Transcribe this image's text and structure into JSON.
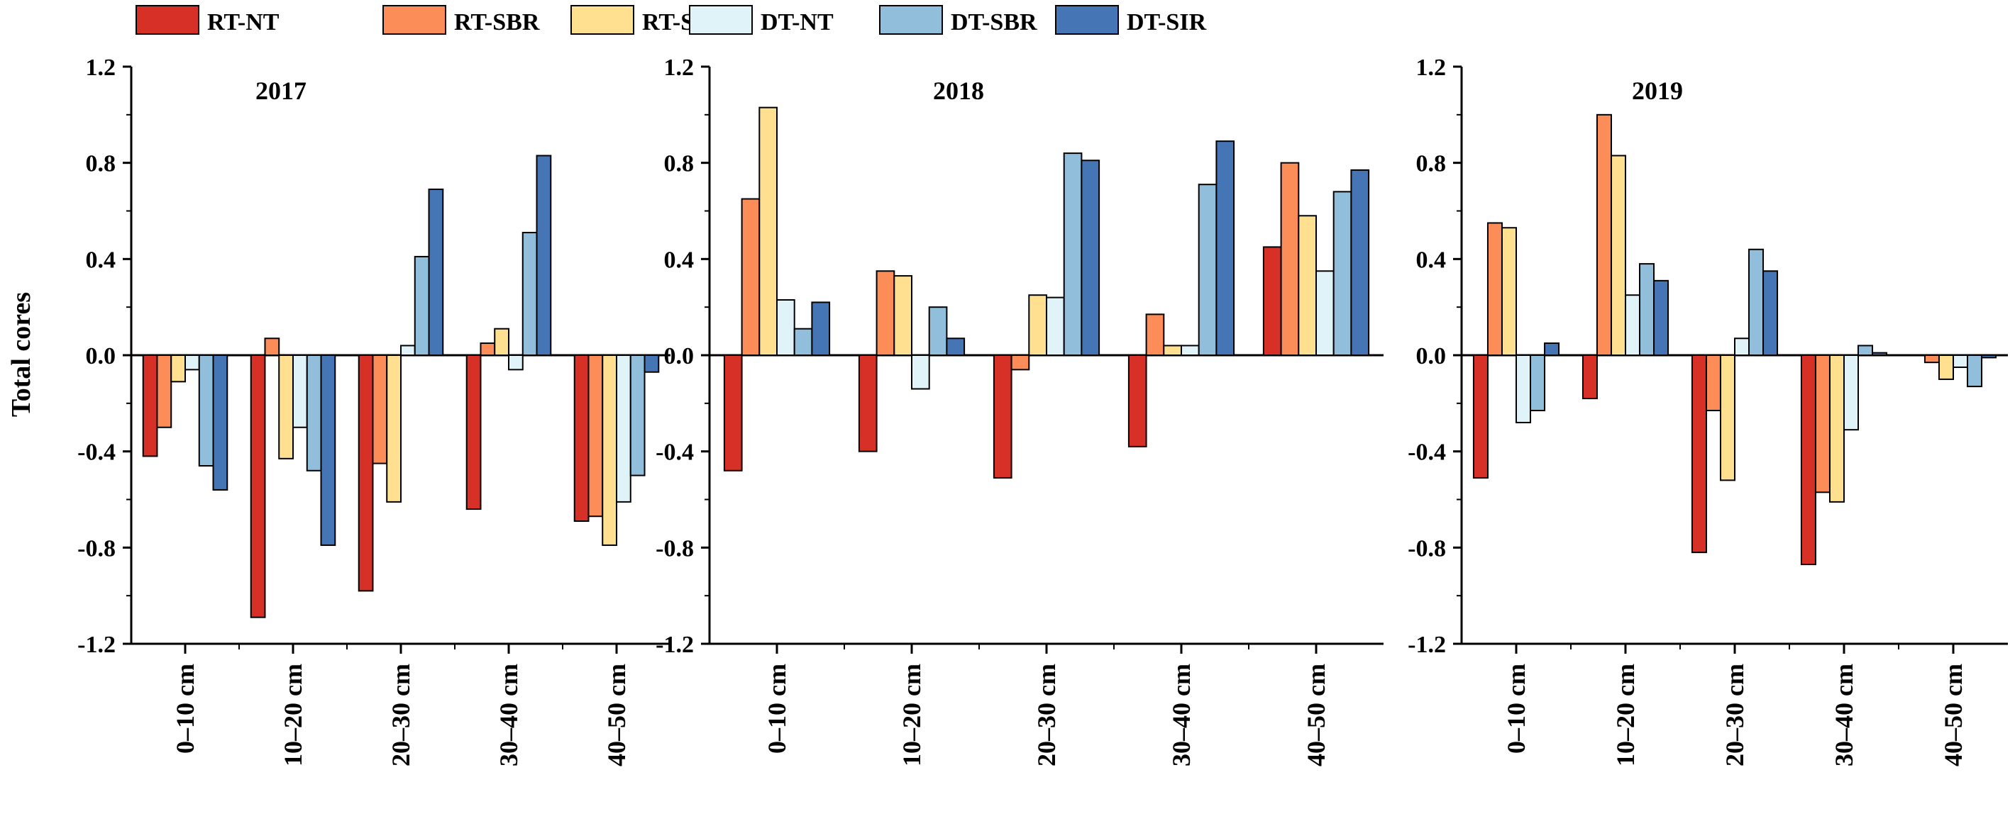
{
  "chart_data": {
    "type": "bar",
    "ylabel": "Total cores",
    "ylim": [
      -1.2,
      1.2
    ],
    "yticks": [
      "1.2",
      "0.8",
      "0.4",
      "0.0",
      "-0.4",
      "-0.8",
      "-1.2"
    ],
    "categories": [
      "0–10 cm",
      "10–20 cm",
      "20–30 cm",
      "30–40 cm",
      "40–50 cm"
    ],
    "legend": [
      {
        "name": "RT-NT",
        "color": "#d73027"
      },
      {
        "name": "RT-SBR",
        "color": "#fc8d59"
      },
      {
        "name": "RT-SIR",
        "color": "#fee090"
      },
      {
        "name": "DT-NT",
        "color": "#e0f3f8"
      },
      {
        "name": "DT-SBR",
        "color": "#91bfdb"
      },
      {
        "name": "DT-SIR",
        "color": "#4575b4"
      }
    ],
    "panels": [
      {
        "title": "2017",
        "series": [
          {
            "name": "RT-NT",
            "values": [
              -0.42,
              -1.09,
              -0.98,
              -0.64,
              -0.69
            ]
          },
          {
            "name": "RT-SBR",
            "values": [
              -0.3,
              0.07,
              -0.45,
              0.05,
              -0.67
            ]
          },
          {
            "name": "RT-SIR",
            "values": [
              -0.11,
              -0.43,
              -0.61,
              0.11,
              -0.79
            ]
          },
          {
            "name": "DT-NT",
            "values": [
              -0.06,
              -0.3,
              0.04,
              -0.06,
              -0.61
            ]
          },
          {
            "name": "DT-SBR",
            "values": [
              -0.46,
              -0.48,
              0.41,
              0.51,
              -0.5
            ]
          },
          {
            "name": "DT-SIR",
            "values": [
              -0.56,
              -0.79,
              0.69,
              0.83,
              -0.07
            ]
          }
        ]
      },
      {
        "title": "2018",
        "series": [
          {
            "name": "RT-NT",
            "values": [
              -0.48,
              -0.4,
              -0.51,
              -0.38,
              0.45
            ]
          },
          {
            "name": "RT-SBR",
            "values": [
              0.65,
              0.35,
              -0.06,
              0.17,
              0.8
            ]
          },
          {
            "name": "RT-SIR",
            "values": [
              1.03,
              0.33,
              0.25,
              0.04,
              0.58
            ]
          },
          {
            "name": "DT-NT",
            "values": [
              0.23,
              -0.14,
              0.24,
              0.04,
              0.35
            ]
          },
          {
            "name": "DT-SBR",
            "values": [
              0.11,
              0.2,
              0.84,
              0.71,
              0.68
            ]
          },
          {
            "name": "DT-SIR",
            "values": [
              0.22,
              0.07,
              0.81,
              0.89,
              0.77
            ]
          }
        ]
      },
      {
        "title": "2019",
        "series": [
          {
            "name": "RT-NT",
            "values": [
              -0.51,
              -0.18,
              -0.82,
              -0.87,
              0.0
            ]
          },
          {
            "name": "RT-SBR",
            "values": [
              0.55,
              1.0,
              -0.23,
              -0.57,
              -0.03
            ]
          },
          {
            "name": "RT-SIR",
            "values": [
              0.53,
              0.83,
              -0.52,
              -0.61,
              -0.1
            ]
          },
          {
            "name": "DT-NT",
            "values": [
              -0.28,
              0.25,
              0.07,
              -0.31,
              -0.05
            ]
          },
          {
            "name": "DT-SBR",
            "values": [
              -0.23,
              0.38,
              0.44,
              0.04,
              -0.13
            ]
          },
          {
            "name": "DT-SIR",
            "values": [
              0.05,
              0.31,
              0.35,
              0.01,
              -0.01
            ]
          }
        ]
      }
    ]
  }
}
